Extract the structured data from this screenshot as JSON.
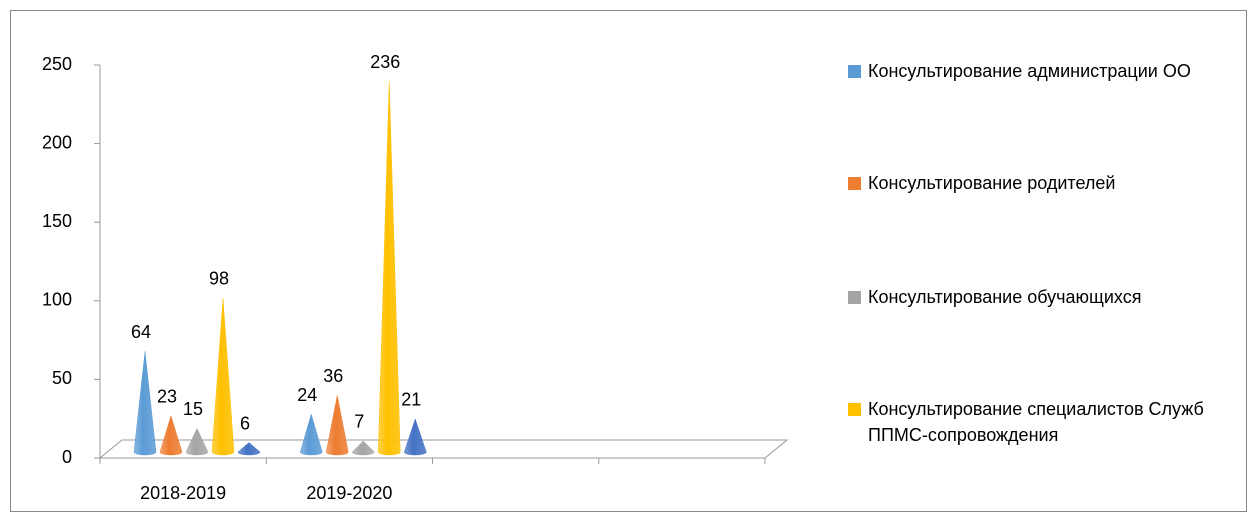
{
  "chart_data": {
    "type": "cone",
    "categories": [
      "2018-2019",
      "2019-2020",
      null,
      null
    ],
    "series": [
      {
        "name": "Консультирование администрации ОО",
        "color": "#5b9bd5",
        "values": [
          64,
          24,
          null,
          null
        ]
      },
      {
        "name": "Консультирование родителей",
        "color": "#ed7d31",
        "values": [
          23,
          36,
          null,
          null
        ]
      },
      {
        "name": "Консультирование обучающихся",
        "color": "#a5a5a5",
        "values": [
          15,
          7,
          null,
          null
        ]
      },
      {
        "name": "Консультирование специалистов Служб ППМС-сопровождения",
        "color": "#ffc000",
        "values": [
          98,
          236,
          null,
          null
        ]
      },
      {
        "color": "#4472c4",
        "values": [
          6,
          21,
          null,
          null
        ]
      }
    ],
    "ylim": [
      0,
      250
    ],
    "yticks": [
      0,
      50,
      100,
      150,
      200,
      250
    ],
    "grid": false,
    "legend": "right"
  }
}
